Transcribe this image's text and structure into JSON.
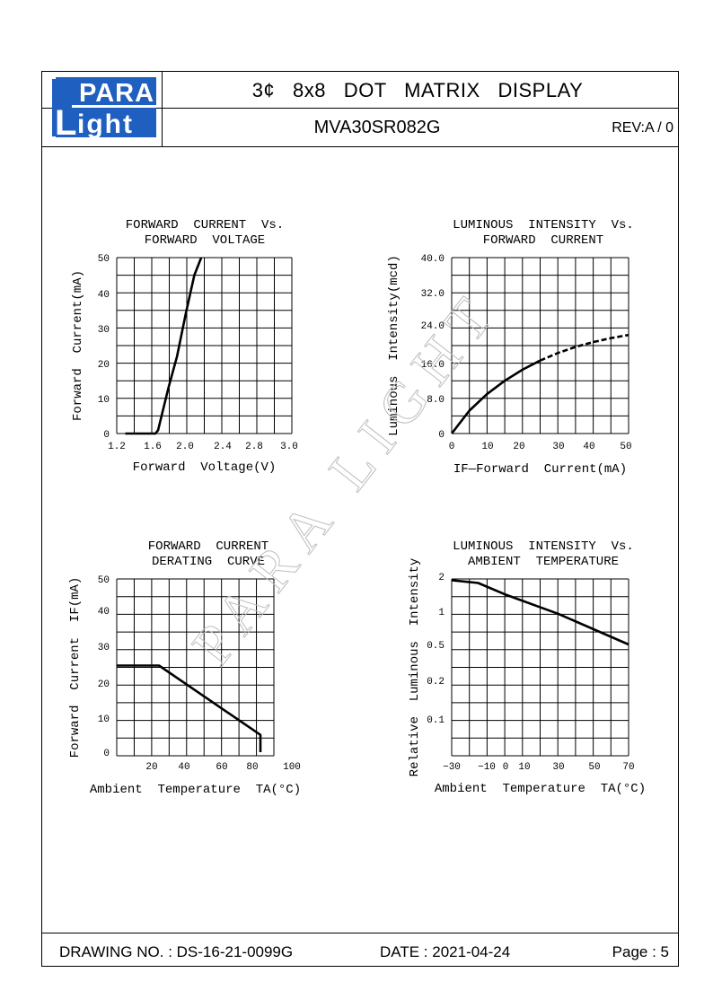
{
  "header": {
    "logo_top": "PARA",
    "logo_bottom": "ight",
    "logo_l": "L",
    "title": "3¢   8x8   DOT   MATRIX   DISPLAY",
    "model": "MVA30SR082G",
    "revision": "REV:A / 0"
  },
  "watermark": "PARA LIGHT",
  "footer": {
    "drawing_no": "DRAWING NO. : DS-16-21-0099G",
    "date": "DATE : 2021-04-24",
    "page": "Page : 5"
  },
  "chart_data": [
    {
      "type": "line",
      "title": [
        "FORWARD  CURRENT  Vs.",
        "FORWARD  VOLTAGE"
      ],
      "xlabel": "Forward  Voltage(V)",
      "ylabel": "Forward  Current(mA)",
      "xticks": [
        "1.2",
        "1.6",
        "2.0",
        "2.4",
        "2.8",
        "3.0"
      ],
      "yticks": [
        "0",
        "10",
        "20",
        "30",
        "40",
        "50"
      ],
      "xlim": [
        1.2,
        3.2
      ],
      "ylim": [
        0,
        50
      ],
      "grid": true,
      "series": [
        {
          "x": [
            1.3,
            1.65,
            1.68,
            1.72,
            1.8,
            1.9,
            2.0,
            2.1,
            2.18
          ],
          "y": [
            0,
            0,
            1,
            5,
            13,
            22,
            34,
            45,
            50
          ]
        }
      ]
    },
    {
      "type": "line",
      "title": [
        "LUMINOUS  INTENSITY  Vs.",
        "FORWARD  CURRENT"
      ],
      "xlabel": "IF—Forward  Current(mA)",
      "ylabel": "Luminous  Intensity(mcd)",
      "xticks": [
        "0",
        "10",
        "20",
        "30",
        "40",
        "50"
      ],
      "yticks": [
        "0",
        "8.0",
        "16.0",
        "24.0",
        "32.0",
        "40.0"
      ],
      "xlim": [
        0,
        50
      ],
      "ylim": [
        0,
        40
      ],
      "grid": true,
      "series": [
        {
          "x": [
            0,
            5,
            10,
            15,
            20,
            25,
            30,
            35,
            40,
            45,
            50
          ],
          "y": [
            0,
            5.2,
            9.0,
            12.0,
            14.5,
            16.6,
            18.3,
            19.7,
            20.8,
            21.7,
            22.4
          ],
          "dashed_from": 25
        }
      ]
    },
    {
      "type": "line",
      "title": [
        "FORWARD  CURRENT",
        "DERATING  CURVE"
      ],
      "xlabel": "Ambient  Temperature  TA(°C)",
      "ylabel": "Forward  Current  IF(mA)",
      "xticks": [
        "20",
        "40",
        "60",
        "80",
        "100"
      ],
      "yticks": [
        "0",
        "10",
        "20",
        "30",
        "40",
        "50"
      ],
      "xlim": [
        0,
        100
      ],
      "ylim": [
        0,
        50
      ],
      "grid": true,
      "series": [
        {
          "x": [
            0,
            25,
            85,
            85
          ],
          "y": [
            25,
            25,
            5,
            0
          ]
        }
      ]
    },
    {
      "type": "line",
      "title": [
        "LUMINOUS  INTENSITY  Vs.",
        "AMBIENT  TEMPERATURE"
      ],
      "xlabel": "Ambient  Temperature  TA(°C)",
      "ylabel": "Relative  Luminous  Intensity",
      "xticks": [
        "−30",
        "−10",
        "0",
        "10",
        "30",
        "50",
        "70"
      ],
      "yticks": [
        "0.1",
        "0.2",
        "0.5",
        "1",
        "2"
      ],
      "xlim": [
        -30,
        70
      ],
      "grid": true,
      "series": [
        {
          "x": [
            -30,
            -15,
            0,
            30,
            70
          ],
          "y": [
            1.85,
            1.75,
            1.4,
            0.95,
            0.5
          ]
        }
      ]
    }
  ]
}
